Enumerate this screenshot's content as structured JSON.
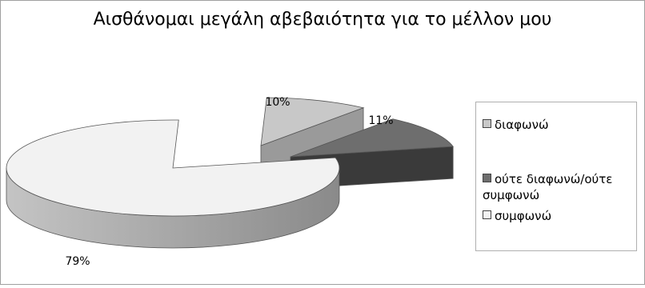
{
  "chart_data": {
    "type": "pie",
    "style": "3d-exploded",
    "title": "Αισθάνομαι μεγάλη αβεβαιότητα για το μέλλον μου",
    "categories": [
      "διαφωνώ",
      "ούτε διαφωνώ/ούτε συμφωνώ",
      "συμφωνώ"
    ],
    "values": [
      10,
      11,
      79
    ],
    "data_labels": [
      "10%",
      "11%",
      "79%"
    ],
    "colors": [
      "#c8c8c8",
      "#6e6e6e",
      "#f2f2f2"
    ],
    "legend_position": "right"
  }
}
